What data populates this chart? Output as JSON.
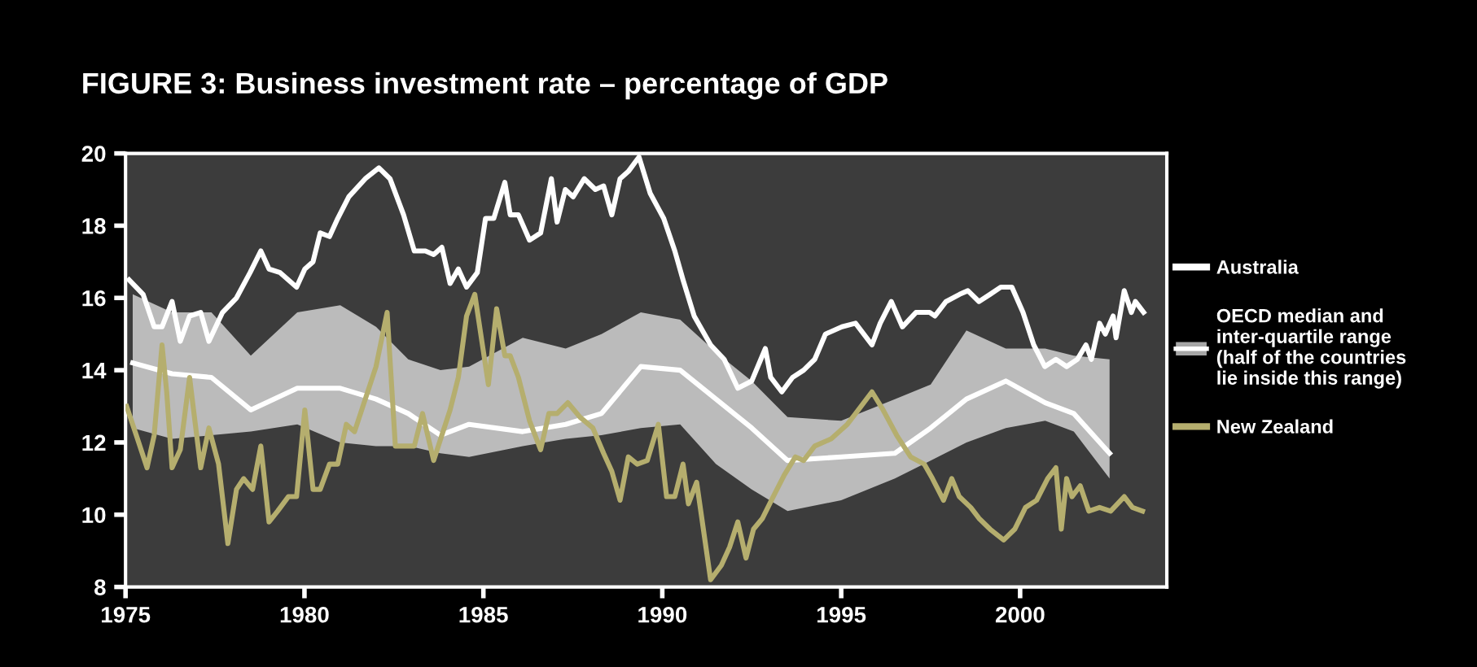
{
  "chart_data": {
    "type": "line",
    "title": "FIGURE 3: Business investment rate – percentage of GDP",
    "xlim": [
      1975,
      2004.1
    ],
    "ylim": [
      8,
      20
    ],
    "xticks": [
      1975,
      1980,
      1985,
      1990,
      1995,
      2000
    ],
    "yticks": [
      8,
      10,
      12,
      14,
      16,
      18,
      20
    ],
    "grid": false,
    "legend": "right",
    "series": [
      {
        "name": "Australia",
        "color": "#ffffff",
        "x": [
          1975.1,
          1975.49,
          1975.8,
          1976.02,
          1976.3,
          1976.53,
          1976.79,
          1977.1,
          1977.33,
          1977.71,
          1978.1,
          1978.48,
          1978.78,
          1979.01,
          1979.32,
          1979.78,
          1980.01,
          1980.24,
          1980.44,
          1980.7,
          1980.93,
          1981.24,
          1981.7,
          1982.08,
          1982.39,
          1982.77,
          1983.07,
          1983.38,
          1983.61,
          1983.84,
          1984.07,
          1984.3,
          1984.53,
          1984.83,
          1985.06,
          1985.29,
          1985.6,
          1985.75,
          1985.98,
          1986.29,
          1986.6,
          1986.9,
          1987.06,
          1987.29,
          1987.51,
          1987.82,
          1988.13,
          1988.36,
          1988.59,
          1988.82,
          1989.05,
          1989.35,
          1989.66,
          1990.04,
          1990.35,
          1990.58,
          1990.89,
          1991.35,
          1991.73,
          1992.11,
          1992.5,
          1992.88,
          1993.03,
          1993.34,
          1993.64,
          1993.95,
          1994.26,
          1994.56,
          1995.02,
          1995.4,
          1995.86,
          1996.09,
          1996.4,
          1996.71,
          1997.09,
          1997.47,
          1997.62,
          1997.93,
          1998.31,
          1998.54,
          1998.85,
          1999.16,
          1999.46,
          1999.77,
          2000.08,
          2000.38,
          2000.69,
          2001.0,
          2001.3,
          2001.6,
          2001.84,
          2001.99,
          2002.22,
          2002.38,
          2002.6,
          2002.68,
          2002.91,
          2003.11,
          2003.22,
          2003.45
        ],
        "values": [
          16.5,
          16.1,
          15.2,
          15.2,
          15.9,
          14.8,
          15.5,
          15.6,
          14.8,
          15.6,
          16.0,
          16.7,
          17.3,
          16.8,
          16.7,
          16.3,
          16.8,
          17.0,
          17.8,
          17.7,
          18.2,
          18.8,
          19.3,
          19.6,
          19.3,
          18.3,
          17.3,
          17.3,
          17.2,
          17.4,
          16.4,
          16.8,
          16.3,
          16.7,
          18.2,
          18.2,
          19.2,
          18.3,
          18.3,
          17.6,
          17.8,
          19.3,
          18.1,
          19.0,
          18.8,
          19.3,
          19.0,
          19.1,
          18.3,
          19.3,
          19.5,
          19.9,
          18.9,
          18.2,
          17.3,
          16.5,
          15.5,
          14.7,
          14.3,
          13.5,
          13.7,
          14.6,
          13.8,
          13.4,
          13.8,
          14.0,
          14.3,
          15.0,
          15.2,
          15.3,
          14.7,
          15.3,
          15.9,
          15.2,
          15.6,
          15.6,
          15.5,
          15.9,
          16.1,
          16.2,
          15.9,
          16.1,
          16.3,
          16.3,
          15.6,
          14.7,
          14.1,
          14.3,
          14.1,
          14.3,
          14.7,
          14.3,
          15.3,
          15.0,
          15.5,
          14.9,
          16.2,
          15.6,
          15.9,
          15.6
        ]
      },
      {
        "name": "OECD median and inter-quartile range (half of the countries lie inside this range)",
        "color": "#ffffff",
        "line_style": "solid",
        "x": [
          1975.2,
          1976.3,
          1977.4,
          1978.5,
          1979.8,
          1981.0,
          1982.0,
          1982.9,
          1983.8,
          1984.6,
          1986.1,
          1987.3,
          1988.3,
          1989.4,
          1990.5,
          1991.5,
          1992.5,
          1993.5,
          1995.0,
          1996.5,
          1997.5,
          1998.5,
          1999.6,
          2000.7,
          2001.5,
          2002.5
        ],
        "values": [
          14.2,
          13.9,
          13.8,
          12.9,
          13.5,
          13.5,
          13.2,
          12.8,
          12.2,
          12.5,
          12.3,
          12.5,
          12.8,
          14.1,
          14.0,
          13.2,
          12.4,
          11.5,
          11.6,
          11.7,
          12.4,
          13.2,
          13.7,
          13.1,
          12.8,
          11.7
        ],
        "upper": [
          16.1,
          15.6,
          15.6,
          14.4,
          15.6,
          15.8,
          15.2,
          14.3,
          14.0,
          14.1,
          14.9,
          14.6,
          15.0,
          15.6,
          15.4,
          14.5,
          13.7,
          12.7,
          12.6,
          13.2,
          13.6,
          15.1,
          14.6,
          14.6,
          14.4,
          14.3
        ],
        "lower": [
          12.4,
          12.1,
          12.2,
          12.3,
          12.5,
          12.0,
          11.9,
          11.9,
          11.7,
          11.6,
          11.9,
          12.1,
          12.2,
          12.4,
          12.5,
          11.4,
          10.7,
          10.1,
          10.4,
          11.0,
          11.5,
          12.0,
          12.4,
          12.6,
          12.3,
          11.0
        ]
      },
      {
        "name": "New Zealand",
        "color": "#b5ae6e",
        "x": [
          1975.03,
          1975.3,
          1975.6,
          1975.8,
          1976.02,
          1976.15,
          1976.3,
          1976.53,
          1976.79,
          1976.95,
          1977.1,
          1977.33,
          1977.6,
          1977.86,
          1978.1,
          1978.3,
          1978.55,
          1978.78,
          1979.01,
          1979.25,
          1979.55,
          1979.78,
          1980.01,
          1980.24,
          1980.44,
          1980.7,
          1980.93,
          1981.17,
          1981.4,
          1981.7,
          1982.0,
          1982.31,
          1982.54,
          1982.8,
          1983.07,
          1983.3,
          1983.61,
          1983.84,
          1984.07,
          1984.3,
          1984.53,
          1984.76,
          1985.14,
          1985.37,
          1985.6,
          1985.75,
          1985.98,
          1986.29,
          1986.6,
          1986.83,
          1987.06,
          1987.36,
          1987.7,
          1988.06,
          1988.36,
          1988.59,
          1988.82,
          1989.05,
          1989.3,
          1989.58,
          1989.89,
          1990.12,
          1990.35,
          1990.58,
          1990.73,
          1990.96,
          1991.35,
          1991.65,
          1991.88,
          1992.11,
          1992.34,
          1992.55,
          1992.8,
          1993.1,
          1993.41,
          1993.72,
          1993.95,
          1994.26,
          1994.72,
          1995.17,
          1995.48,
          1995.86,
          1996.17,
          1996.55,
          1996.94,
          1997.32,
          1997.55,
          1997.86,
          1998.09,
          1998.3,
          1998.62,
          1998.85,
          1999.16,
          1999.54,
          1999.85,
          2000.15,
          2000.46,
          2000.77,
          2001.0,
          2001.15,
          2001.3,
          2001.45,
          2001.68,
          2001.92,
          2002.22,
          2002.53,
          2002.91,
          2003.14,
          2003.42
        ],
        "values": [
          13.0,
          12.2,
          11.3,
          12.2,
          14.7,
          13.4,
          11.3,
          11.8,
          13.8,
          12.5,
          11.3,
          12.4,
          11.4,
          9.2,
          10.7,
          11.0,
          10.7,
          11.9,
          9.8,
          10.1,
          10.5,
          10.5,
          12.9,
          10.7,
          10.7,
          11.4,
          11.4,
          12.5,
          12.3,
          13.2,
          14.1,
          15.6,
          11.9,
          11.9,
          11.9,
          12.8,
          11.5,
          12.2,
          12.9,
          13.8,
          15.5,
          16.1,
          13.6,
          15.7,
          14.4,
          14.4,
          13.8,
          12.6,
          11.8,
          12.8,
          12.8,
          13.1,
          12.7,
          12.4,
          11.7,
          11.2,
          10.4,
          11.6,
          11.4,
          11.5,
          12.5,
          10.5,
          10.5,
          11.4,
          10.3,
          10.9,
          8.2,
          8.6,
          9.1,
          9.8,
          8.8,
          9.6,
          9.9,
          10.5,
          11.1,
          11.6,
          11.5,
          11.9,
          12.1,
          12.5,
          12.9,
          13.4,
          12.9,
          12.2,
          11.6,
          11.4,
          11.0,
          10.4,
          11.0,
          10.5,
          10.2,
          9.9,
          9.6,
          9.3,
          9.6,
          10.2,
          10.4,
          11.0,
          11.3,
          9.6,
          11.0,
          10.5,
          10.8,
          10.1,
          10.2,
          10.1,
          10.5,
          10.2,
          10.1
        ]
      }
    ]
  }
}
